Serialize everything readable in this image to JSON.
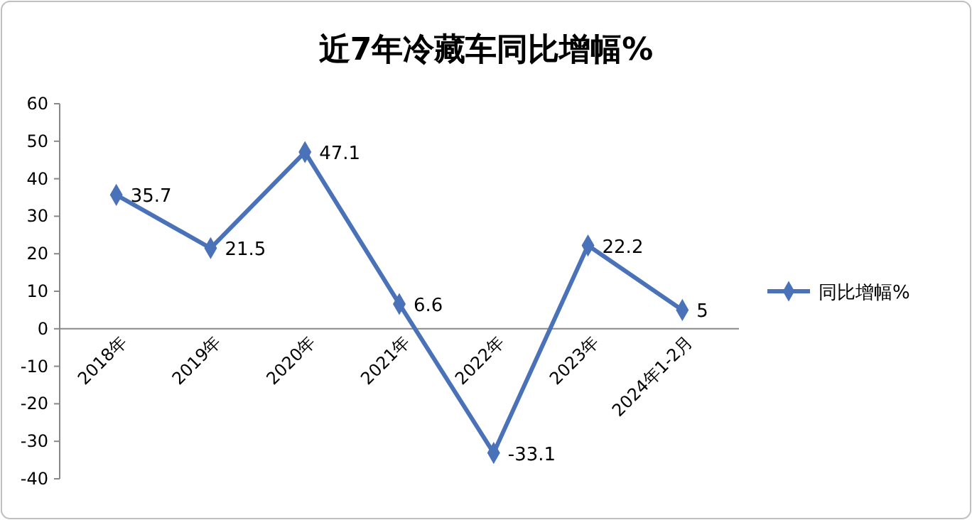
{
  "chart_data": {
    "type": "line",
    "title": "近7年冷藏车同比增幅%",
    "categories": [
      "2018年",
      "2019年",
      "2020年",
      "2021年",
      "2022年",
      "2023年",
      "2024年1-2月"
    ],
    "series": [
      {
        "name": "同比增幅%",
        "color": "#4a72b8",
        "values": [
          35.7,
          21.5,
          47.1,
          6.6,
          -33.1,
          22.2,
          5
        ]
      }
    ],
    "ylim": [
      -40,
      60
    ],
    "yticks": [
      -40,
      -30,
      -20,
      -10,
      0,
      10,
      20,
      30,
      40,
      50,
      60
    ],
    "grid": false,
    "legend": "right",
    "marker": "diamond",
    "line_style": "solid",
    "data_labels": true
  }
}
